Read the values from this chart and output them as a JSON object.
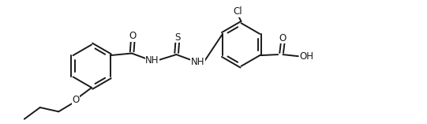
{
  "background_color": "#ffffff",
  "line_color": "#1a1a1a",
  "line_width": 1.4,
  "font_size_atom": 8.5,
  "fig_width": 5.41,
  "fig_height": 1.57,
  "dpi": 100,
  "xlim": [
    0.0,
    10.2
  ],
  "ylim": [
    -0.2,
    2.8
  ]
}
